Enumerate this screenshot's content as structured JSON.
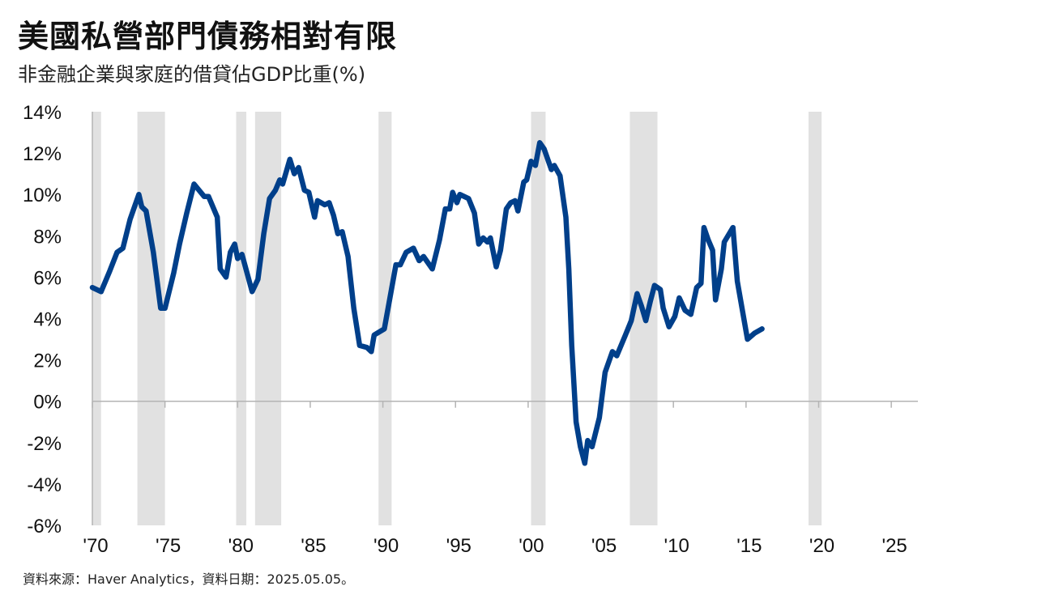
{
  "title": "美國私營部門債務相對有限",
  "subtitle": "非金融企業與家庭的借貸佔GDP比重(%)",
  "source": "資料來源：Haver Analytics，資料日期：2025.05.05。",
  "colors": {
    "line": "#003f8a",
    "recession": "#e1e1e1",
    "axis": "#b4b4b4"
  },
  "chart_data": {
    "type": "line",
    "title": "美國私營部門債務相對有限",
    "subtitle": "非金融企業與家庭的借貸佔GDP比重(%)",
    "xlabel": "",
    "ylabel": "",
    "xlim": [
      1970,
      2027
    ],
    "ylim": [
      -6,
      14
    ],
    "y_ticks": [
      {
        "value": 14,
        "label": "14%"
      },
      {
        "value": 12,
        "label": "12%"
      },
      {
        "value": 10,
        "label": "10%"
      },
      {
        "value": 8,
        "label": "8%"
      },
      {
        "value": 6,
        "label": "6%"
      },
      {
        "value": 4,
        "label": "4%"
      },
      {
        "value": 2,
        "label": "2%"
      },
      {
        "value": 0,
        "label": "0%"
      },
      {
        "value": -2,
        "label": "-2%"
      },
      {
        "value": -4,
        "label": "-4%"
      },
      {
        "value": -6,
        "label": "-6%"
      }
    ],
    "x_ticks": [
      {
        "value": 1970,
        "label": "'70"
      },
      {
        "value": 1975,
        "label": "'75"
      },
      {
        "value": 1980,
        "label": "'80"
      },
      {
        "value": 1985,
        "label": "'85"
      },
      {
        "value": 1990,
        "label": "'90"
      },
      {
        "value": 1995,
        "label": "'95"
      },
      {
        "value": 2000,
        "label": "'00"
      },
      {
        "value": 2005,
        "label": "'05"
      },
      {
        "value": 2010,
        "label": "'10"
      },
      {
        "value": 2015,
        "label": "'15"
      },
      {
        "value": 2020,
        "label": "'20"
      },
      {
        "value": 2025,
        "label": "'25"
      }
    ],
    "recessions": [
      [
        1970.0,
        1970.6
      ],
      [
        1973.1,
        1975.0
      ],
      [
        1979.9,
        1980.6
      ],
      [
        1981.2,
        1983.0
      ],
      [
        1989.7,
        1990.6
      ],
      [
        2000.2,
        2001.2
      ],
      [
        2007.0,
        2008.9
      ],
      [
        2019.3,
        2020.2
      ]
    ],
    "series": [
      {
        "values": [
          [
            1970.0,
            5.5
          ],
          [
            1970.6,
            5.3
          ],
          [
            1971.2,
            6.3
          ],
          [
            1971.7,
            7.2
          ],
          [
            1972.1,
            7.4
          ],
          [
            1972.6,
            8.8
          ],
          [
            1972.9,
            9.4
          ],
          [
            1973.2,
            10.0
          ],
          [
            1973.4,
            9.4
          ],
          [
            1973.7,
            9.2
          ],
          [
            1974.2,
            7.2
          ],
          [
            1974.7,
            4.5
          ],
          [
            1975.0,
            4.5
          ],
          [
            1975.6,
            6.2
          ],
          [
            1976.0,
            7.6
          ],
          [
            1976.5,
            9.1
          ],
          [
            1977.0,
            10.5
          ],
          [
            1977.7,
            9.9
          ],
          [
            1978.0,
            9.9
          ],
          [
            1978.6,
            8.9
          ],
          [
            1978.8,
            6.4
          ],
          [
            1979.2,
            6.0
          ],
          [
            1979.5,
            7.2
          ],
          [
            1979.8,
            7.6
          ],
          [
            1980.0,
            6.9
          ],
          [
            1980.3,
            7.1
          ],
          [
            1981.0,
            5.3
          ],
          [
            1981.4,
            5.9
          ],
          [
            1981.8,
            8.1
          ],
          [
            1982.2,
            9.8
          ],
          [
            1982.6,
            10.2
          ],
          [
            1982.9,
            10.7
          ],
          [
            1983.1,
            10.5
          ],
          [
            1983.6,
            11.7
          ],
          [
            1983.9,
            11.0
          ],
          [
            1984.2,
            11.3
          ],
          [
            1984.6,
            10.2
          ],
          [
            1984.9,
            10.1
          ],
          [
            1985.3,
            8.9
          ],
          [
            1985.5,
            9.7
          ],
          [
            1986.0,
            9.5
          ],
          [
            1986.3,
            9.6
          ],
          [
            1986.6,
            9.0
          ],
          [
            1986.9,
            8.1
          ],
          [
            1987.2,
            8.2
          ],
          [
            1987.6,
            7.0
          ],
          [
            1988.0,
            4.5
          ],
          [
            1988.4,
            2.7
          ],
          [
            1988.9,
            2.6
          ],
          [
            1989.2,
            2.4
          ],
          [
            1989.4,
            3.2
          ],
          [
            1990.1,
            3.5
          ],
          [
            1990.9,
            6.6
          ],
          [
            1991.2,
            6.6
          ],
          [
            1991.6,
            7.2
          ],
          [
            1992.1,
            7.4
          ],
          [
            1992.5,
            6.8
          ],
          [
            1992.8,
            7.0
          ],
          [
            1993.4,
            6.4
          ],
          [
            1993.9,
            7.8
          ],
          [
            1994.3,
            9.3
          ],
          [
            1994.6,
            9.3
          ],
          [
            1994.8,
            10.1
          ],
          [
            1995.1,
            9.6
          ],
          [
            1995.3,
            10.0
          ],
          [
            1995.9,
            9.8
          ],
          [
            1996.3,
            9.1
          ],
          [
            1996.6,
            7.6
          ],
          [
            1996.9,
            7.9
          ],
          [
            1997.2,
            7.7
          ],
          [
            1997.4,
            7.9
          ],
          [
            1997.8,
            6.5
          ],
          [
            1998.1,
            7.3
          ],
          [
            1998.5,
            9.3
          ],
          [
            1998.8,
            9.6
          ],
          [
            1999.1,
            9.7
          ],
          [
            1999.3,
            9.2
          ],
          [
            1999.7,
            10.6
          ],
          [
            1999.9,
            10.7
          ],
          [
            2000.2,
            11.6
          ],
          [
            2000.5,
            11.4
          ],
          [
            2000.8,
            12.5
          ],
          [
            2001.1,
            12.2
          ],
          [
            2001.6,
            11.2
          ],
          [
            2001.8,
            11.4
          ],
          [
            2002.2,
            10.9
          ],
          [
            2002.6,
            8.9
          ],
          [
            2002.8,
            6.4
          ],
          [
            2003.0,
            2.7
          ],
          [
            2003.3,
            -1.0
          ],
          [
            2003.6,
            -2.2
          ],
          [
            2003.9,
            -3.0
          ],
          [
            2004.1,
            -1.9
          ],
          [
            2004.4,
            -2.2
          ],
          [
            2004.9,
            -0.8
          ],
          [
            2005.3,
            1.4
          ],
          [
            2005.8,
            2.4
          ],
          [
            2006.1,
            2.2
          ],
          [
            2006.7,
            3.2
          ],
          [
            2007.1,
            3.9
          ],
          [
            2007.5,
            5.2
          ],
          [
            2007.8,
            4.6
          ],
          [
            2008.1,
            3.9
          ],
          [
            2008.4,
            4.8
          ],
          [
            2008.7,
            5.6
          ],
          [
            2009.1,
            5.4
          ],
          [
            2009.3,
            4.5
          ],
          [
            2009.7,
            3.6
          ],
          [
            2010.1,
            4.1
          ],
          [
            2010.4,
            5.0
          ],
          [
            2010.8,
            4.4
          ],
          [
            2011.2,
            4.2
          ],
          [
            2011.6,
            5.5
          ],
          [
            2011.9,
            5.7
          ],
          [
            2012.1,
            8.4
          ],
          [
            2012.4,
            7.8
          ],
          [
            2012.7,
            7.3
          ],
          [
            2012.9,
            4.9
          ],
          [
            2013.3,
            6.4
          ],
          [
            2013.5,
            7.7
          ],
          [
            2014.1,
            8.4
          ],
          [
            2014.4,
            5.8
          ],
          [
            2015.1,
            3.0
          ],
          [
            2015.6,
            3.3
          ],
          [
            2016.1,
            3.5
          ]
        ]
      }
    ],
    "legend": "none",
    "grid": false
  }
}
